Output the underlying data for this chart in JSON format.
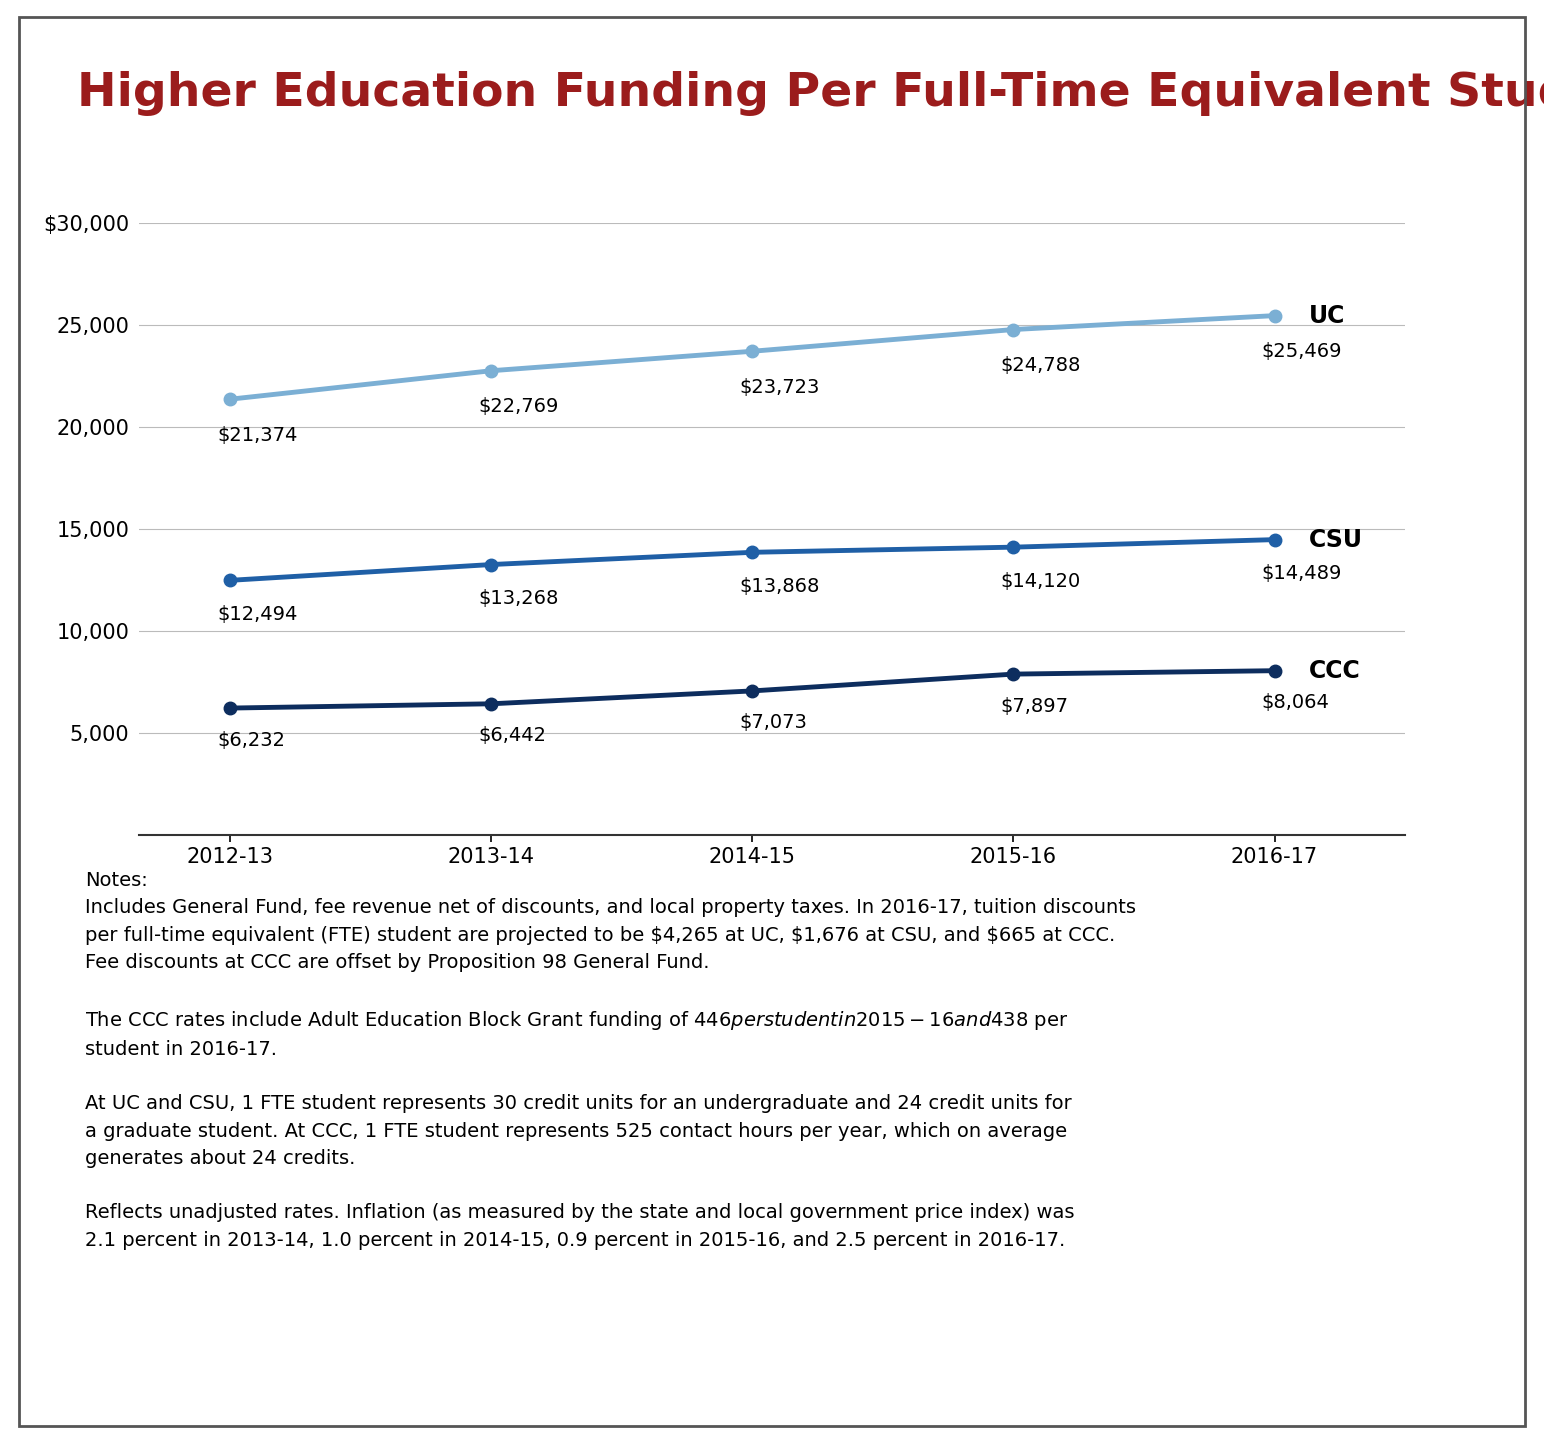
{
  "title": "Higher Education Funding Per Full-Time Equivalent Student",
  "title_color": "#9B1C1C",
  "title_fontsize": 34,
  "background_color": "#FFFFFF",
  "header_bar_color": "#111111",
  "years": [
    "2012-13",
    "2013-14",
    "2014-15",
    "2015-16",
    "2016-17"
  ],
  "UC": [
    21374,
    22769,
    23723,
    24788,
    25469
  ],
  "CSU": [
    12494,
    13268,
    13868,
    14120,
    14489
  ],
  "CCC": [
    6232,
    6442,
    7073,
    7897,
    8064
  ],
  "UC_color": "#7BAFD4",
  "CSU_color": "#1F5FA6",
  "CCC_color": "#0D2D5E",
  "line_width": 3.5,
  "marker": "o",
  "marker_size": 9,
  "ylim": [
    0,
    30000
  ],
  "yticks": [
    0,
    5000,
    10000,
    15000,
    20000,
    25000,
    30000
  ],
  "ytick_labels": [
    "",
    "5,000",
    "10,000",
    "15,000",
    "20,000",
    "25,000",
    "$30,000"
  ],
  "grid_color": "#BBBBBB",
  "grid_linewidth": 0.8,
  "label_fontsize": 14,
  "tick_fontsize": 15,
  "series_label_fontsize": 17,
  "notes_line1": "Notes:",
  "notes_line2": "Includes General Fund, fee revenue net of discounts, and local property taxes. In 2016-17, tuition discounts",
  "notes_line3": "per full-time equivalent (FTE) student are projected to be $4,265 at UC, $1,676 at CSU, and $665 at CCC.",
  "notes_line4": "Fee discounts at CCC are offset by Proposition 98 General Fund.",
  "notes_line5": "",
  "notes_line6": "The CCC rates include Adult Education Block Grant funding of $446 per student in 2015-16 and $438 per",
  "notes_line7": "student in 2016-17.",
  "notes_line8": "",
  "notes_line9": "At UC and CSU, 1 FTE student represents 30 credit units for an undergraduate and 24 credit units for",
  "notes_line10": "a graduate student. At CCC, 1 FTE student represents 525 contact hours per year, which on average",
  "notes_line11": "generates about 24 credits.",
  "notes_line12": "",
  "notes_line13": "Reflects unadjusted rates. Inflation (as measured by the state and local government price index) was",
  "notes_line14": "2.1 percent in 2013-14, 1.0 percent in 2014-15, 0.9 percent in 2015-16, and 2.5 percent in 2016-17.",
  "notes_fontsize": 14.0
}
